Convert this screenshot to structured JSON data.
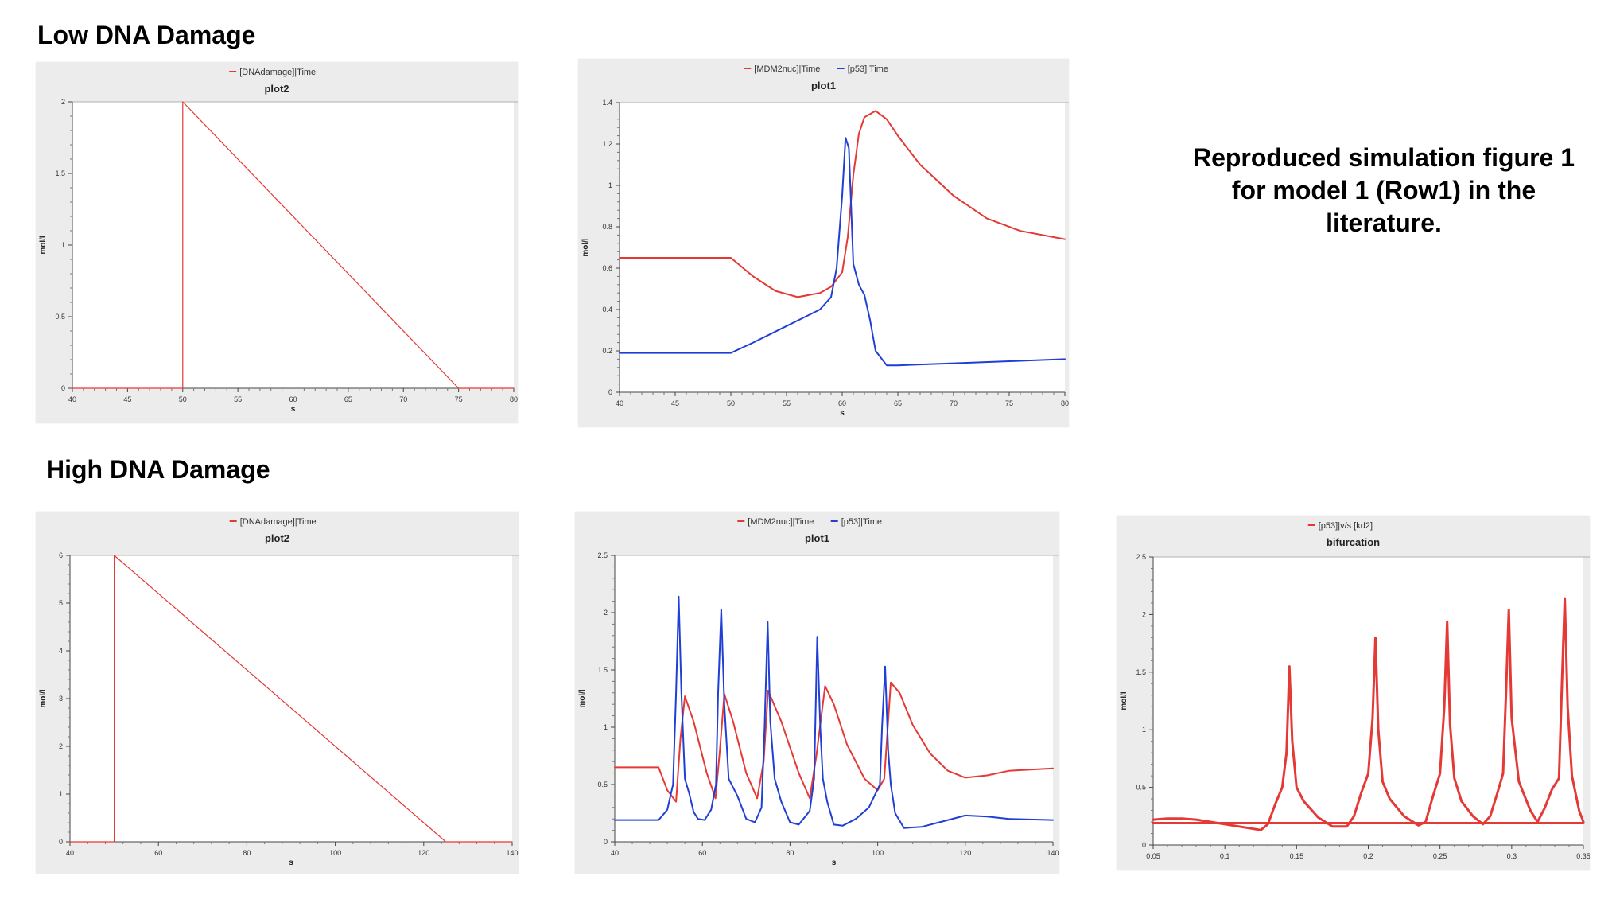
{
  "headings": {
    "low": "Low DNA Damage",
    "high": "High DNA Damage"
  },
  "note": {
    "line1": "Reproduced simulation figure 1",
    "line2": "for model 1 (Row1) in the",
    "line3": "literature."
  },
  "colors": {
    "red": "#e53935",
    "blue": "#1f3fd6"
  },
  "chart_data": [
    {
      "id": "low_dna",
      "type": "line",
      "title": "plot2",
      "xlabel": "s",
      "ylabel": "mol/l",
      "xlim": [
        40,
        80
      ],
      "ylim": [
        0,
        2
      ],
      "xticks": [
        40,
        45,
        50,
        55,
        60,
        65,
        70,
        75,
        80
      ],
      "yticks": [
        0,
        0.5,
        1,
        1.5,
        2
      ],
      "legend": "top-center",
      "series": [
        {
          "name": "[DNAdamage]|Time",
          "color": "#e53935",
          "width": 1.2,
          "x": [
            40,
            50,
            50,
            75,
            80
          ],
          "y": [
            0,
            0,
            2,
            0,
            0
          ]
        }
      ]
    },
    {
      "id": "low_p53",
      "type": "line",
      "title": "plot1",
      "xlabel": "s",
      "ylabel": "mol/l",
      "xlim": [
        40,
        80
      ],
      "ylim": [
        0,
        1.4
      ],
      "xticks": [
        40,
        45,
        50,
        55,
        60,
        65,
        70,
        75,
        80
      ],
      "yticks": [
        0,
        0.2,
        0.4,
        0.6,
        0.8,
        1,
        1.2,
        1.4
      ],
      "legend": "top-center",
      "series": [
        {
          "name": "[MDM2nuc]|Time",
          "color": "#e53935",
          "width": 2,
          "x": [
            40,
            50,
            52,
            54,
            56,
            58,
            59,
            60,
            60.5,
            61,
            61.5,
            62,
            63,
            64,
            65,
            67,
            70,
            73,
            76,
            80
          ],
          "y": [
            0.65,
            0.65,
            0.56,
            0.49,
            0.46,
            0.48,
            0.51,
            0.58,
            0.75,
            1.05,
            1.25,
            1.33,
            1.36,
            1.32,
            1.24,
            1.1,
            0.95,
            0.84,
            0.78,
            0.74
          ]
        },
        {
          "name": "[p53]|Time",
          "color": "#1f3fd6",
          "width": 2,
          "x": [
            40,
            50,
            52,
            55,
            58,
            59,
            59.5,
            60,
            60.3,
            60.6,
            61,
            61.5,
            62,
            62.5,
            63,
            64,
            65,
            70,
            75,
            80
          ],
          "y": [
            0.19,
            0.19,
            0.24,
            0.32,
            0.4,
            0.46,
            0.6,
            0.95,
            1.23,
            1.18,
            0.62,
            0.52,
            0.47,
            0.35,
            0.2,
            0.13,
            0.13,
            0.14,
            0.15,
            0.16
          ]
        }
      ]
    },
    {
      "id": "high_dna",
      "type": "line",
      "title": "plot2",
      "xlabel": "s",
      "ylabel": "mol/l",
      "xlim": [
        40,
        140
      ],
      "ylim": [
        0,
        6
      ],
      "xticks": [
        40,
        60,
        80,
        100,
        120,
        140
      ],
      "yticks": [
        0,
        1,
        2,
        3,
        4,
        5,
        6
      ],
      "legend": "top-center",
      "series": [
        {
          "name": "[DNAdamage]|Time",
          "color": "#e53935",
          "width": 1.2,
          "x": [
            40,
            50,
            50,
            125,
            140
          ],
          "y": [
            0,
            0,
            6,
            0,
            0
          ]
        }
      ]
    },
    {
      "id": "high_p53",
      "type": "line",
      "title": "plot1",
      "xlabel": "s",
      "ylabel": "mol/l",
      "xlim": [
        40,
        140
      ],
      "ylim": [
        0,
        2.5
      ],
      "xticks": [
        40,
        60,
        80,
        100,
        120,
        140
      ],
      "yticks": [
        0,
        0.5,
        1,
        1.5,
        2,
        2.5
      ],
      "legend": "top-center",
      "series": [
        {
          "name": "[MDM2nuc]|Time",
          "color": "#e53935",
          "width": 2,
          "x": [
            40,
            50,
            52,
            54,
            55,
            56,
            58,
            61,
            63,
            64,
            65,
            67,
            70,
            72.5,
            74,
            75,
            78,
            82,
            84.5,
            86,
            88,
            90,
            93,
            97,
            100,
            101.5,
            103,
            105,
            108,
            112,
            116,
            120,
            125,
            130,
            140
          ],
          "y": [
            0.65,
            0.65,
            0.45,
            0.35,
            0.9,
            1.27,
            1.05,
            0.6,
            0.38,
            0.8,
            1.29,
            1.05,
            0.6,
            0.38,
            0.7,
            1.32,
            1.05,
            0.6,
            0.38,
            0.75,
            1.36,
            1.2,
            0.85,
            0.55,
            0.45,
            0.55,
            1.39,
            1.3,
            1.02,
            0.77,
            0.62,
            0.56,
            0.58,
            0.62,
            0.64
          ]
        },
        {
          "name": "[p53]|Time",
          "color": "#1f3fd6",
          "width": 2,
          "x": [
            40,
            50,
            52,
            53.3,
            54,
            54.6,
            55.2,
            56,
            57,
            58,
            59,
            60.5,
            62,
            63.1,
            63.6,
            64.3,
            65,
            66,
            68,
            70,
            72,
            73.5,
            74.2,
            74.9,
            75.5,
            76.5,
            78,
            80,
            82,
            84.5,
            85.5,
            86.2,
            86.9,
            87.5,
            88.5,
            90,
            92,
            95,
            98,
            100.5,
            101,
            101.7,
            102.4,
            103,
            104,
            106,
            110,
            115,
            120,
            125,
            130,
            140
          ],
          "y": [
            0.19,
            0.19,
            0.28,
            0.5,
            1.3,
            2.14,
            1.3,
            0.55,
            0.42,
            0.26,
            0.2,
            0.19,
            0.28,
            0.5,
            1.3,
            2.03,
            1.2,
            0.55,
            0.4,
            0.2,
            0.17,
            0.3,
            1.0,
            1.92,
            1.05,
            0.55,
            0.35,
            0.17,
            0.15,
            0.27,
            0.55,
            1.79,
            1.0,
            0.55,
            0.35,
            0.15,
            0.14,
            0.2,
            0.3,
            0.5,
            1.0,
            1.53,
            0.8,
            0.5,
            0.25,
            0.12,
            0.13,
            0.18,
            0.23,
            0.22,
            0.2,
            0.19
          ]
        }
      ]
    },
    {
      "id": "bifurcation",
      "type": "line",
      "title": "bifurcation",
      "xlabel": "",
      "ylabel": "mol/l",
      "xlim": [
        0.05,
        0.35
      ],
      "ylim": [
        0,
        2.5
      ],
      "xticks": [
        0.05,
        0.1,
        0.15,
        0.2,
        0.25,
        0.3,
        0.35
      ],
      "yticks": [
        0,
        0.5,
        1,
        1.5,
        2,
        2.5
      ],
      "legend": "top-center",
      "series": [
        {
          "name": "[p53]|v/s [kd2]",
          "color": "#e53935",
          "width": 3,
          "x": [
            0.05,
            0.06,
            0.07,
            0.08,
            0.09,
            0.1,
            0.11,
            0.125,
            0.13,
            0.135,
            0.14,
            0.143,
            0.145,
            0.147,
            0.15,
            0.155,
            0.165,
            0.175,
            0.185,
            0.19,
            0.195,
            0.2,
            0.203,
            0.205,
            0.207,
            0.21,
            0.215,
            0.225,
            0.235,
            0.24,
            0.245,
            0.25,
            0.253,
            0.255,
            0.257,
            0.26,
            0.265,
            0.273,
            0.28,
            0.285,
            0.29,
            0.294,
            0.296,
            0.298,
            0.3,
            0.305,
            0.313,
            0.318,
            0.323,
            0.328,
            0.333,
            0.335,
            0.337,
            0.339,
            0.342,
            0.347,
            0.35,
            0.35,
            0.05
          ],
          "y": [
            0.22,
            0.23,
            0.23,
            0.22,
            0.2,
            0.18,
            0.16,
            0.13,
            0.18,
            0.35,
            0.5,
            0.8,
            1.55,
            0.9,
            0.5,
            0.38,
            0.24,
            0.16,
            0.16,
            0.25,
            0.45,
            0.62,
            1.1,
            1.8,
            1.0,
            0.55,
            0.4,
            0.25,
            0.17,
            0.2,
            0.42,
            0.62,
            1.2,
            1.94,
            1.05,
            0.58,
            0.38,
            0.25,
            0.18,
            0.25,
            0.45,
            0.62,
            1.3,
            2.04,
            1.1,
            0.55,
            0.3,
            0.2,
            0.32,
            0.48,
            0.58,
            1.4,
            2.14,
            1.2,
            0.6,
            0.3,
            0.2,
            0.19,
            0.19
          ]
        }
      ]
    }
  ]
}
